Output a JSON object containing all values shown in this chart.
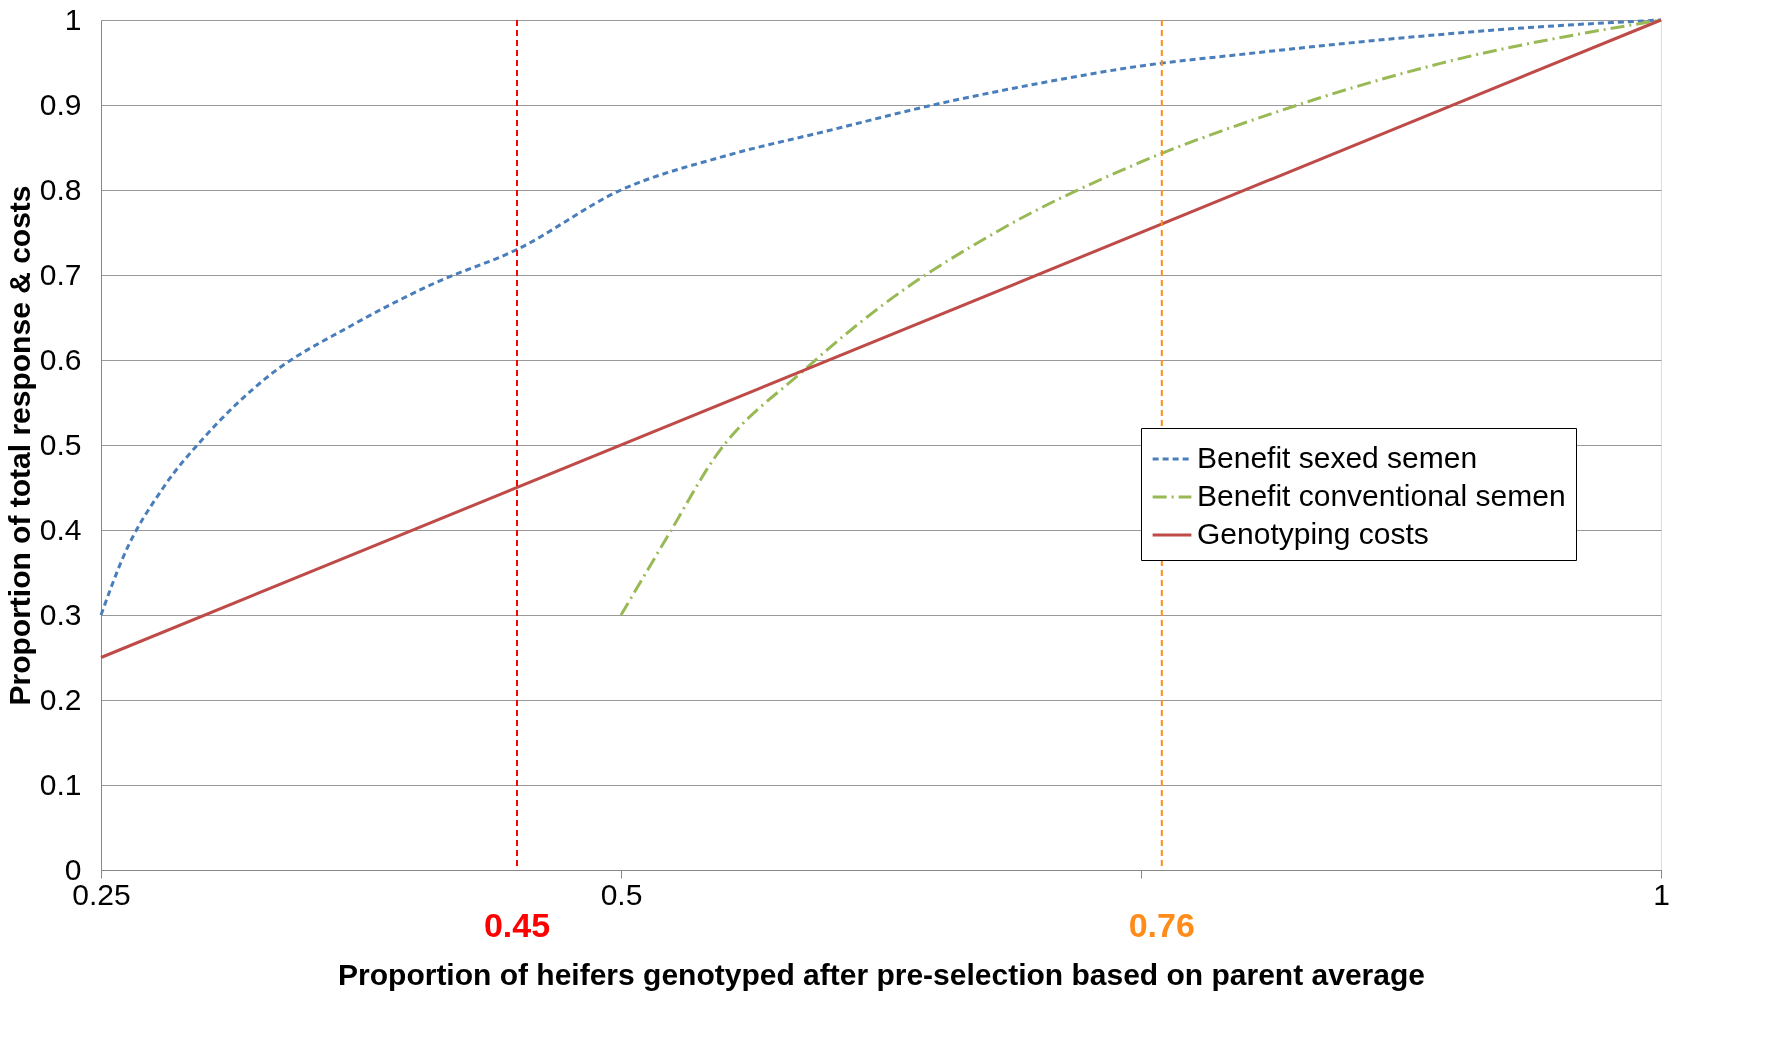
{
  "chart_data": {
    "type": "line",
    "xlabel": "Proportion of heifers  genotyped after pre-selection based on parent average",
    "ylabel": "Proportion of total response & costs",
    "xlim": [
      0.25,
      1
    ],
    "xticks": [
      0.25,
      0.5,
      {
        "value": 0.75,
        "label": null
      },
      1
    ],
    "ylim": [
      0,
      1
    ],
    "yticks": [
      0,
      0.1,
      0.2,
      0.3,
      0.4,
      0.5,
      0.6,
      0.7,
      0.8,
      0.9,
      1
    ],
    "grid": "y",
    "legend": "right",
    "series": [
      {
        "name": "Benefit sexed semen",
        "color": "#4a7ebb",
        "line_style": "dashed",
        "x": [
          0.25,
          0.261,
          0.28,
          0.3,
          0.33,
          0.37,
          0.41,
          0.45,
          0.5,
          0.55,
          0.6,
          0.65,
          0.7,
          0.75,
          0.8,
          0.867,
          0.93,
          1
        ],
        "values": [
          0.3,
          0.37,
          0.45,
          0.51,
          0.58,
          0.64,
          0.69,
          0.73,
          0.8,
          0.84,
          0.87,
          0.9,
          0.925,
          0.946,
          0.96,
          0.977,
          0.99,
          1
        ]
      },
      {
        "name": "Benefit conventional semen",
        "color": "#98b954",
        "line_style": "dashdot",
        "x": [
          0.5,
          0.523,
          0.545,
          0.588,
          0.626,
          0.68,
          0.75,
          0.813,
          0.894,
          1
        ],
        "values": [
          0.3,
          0.395,
          0.485,
          0.588,
          0.665,
          0.75,
          0.833,
          0.89,
          0.949,
          1
        ]
      },
      {
        "name": "Genotyping costs",
        "color": "#be4b48",
        "line_style": "solid",
        "x": [
          0.25,
          1
        ],
        "values": [
          0.25,
          1
        ]
      }
    ],
    "ref_lines": [
      {
        "axis": "x",
        "value": 0.45,
        "label": "0.45",
        "color": "#ff0000",
        "line_style": "dashed"
      },
      {
        "axis": "x",
        "value": 0.76,
        "label": "0.76",
        "color": "#ff8c1a",
        "line_style": "dashed"
      }
    ]
  }
}
